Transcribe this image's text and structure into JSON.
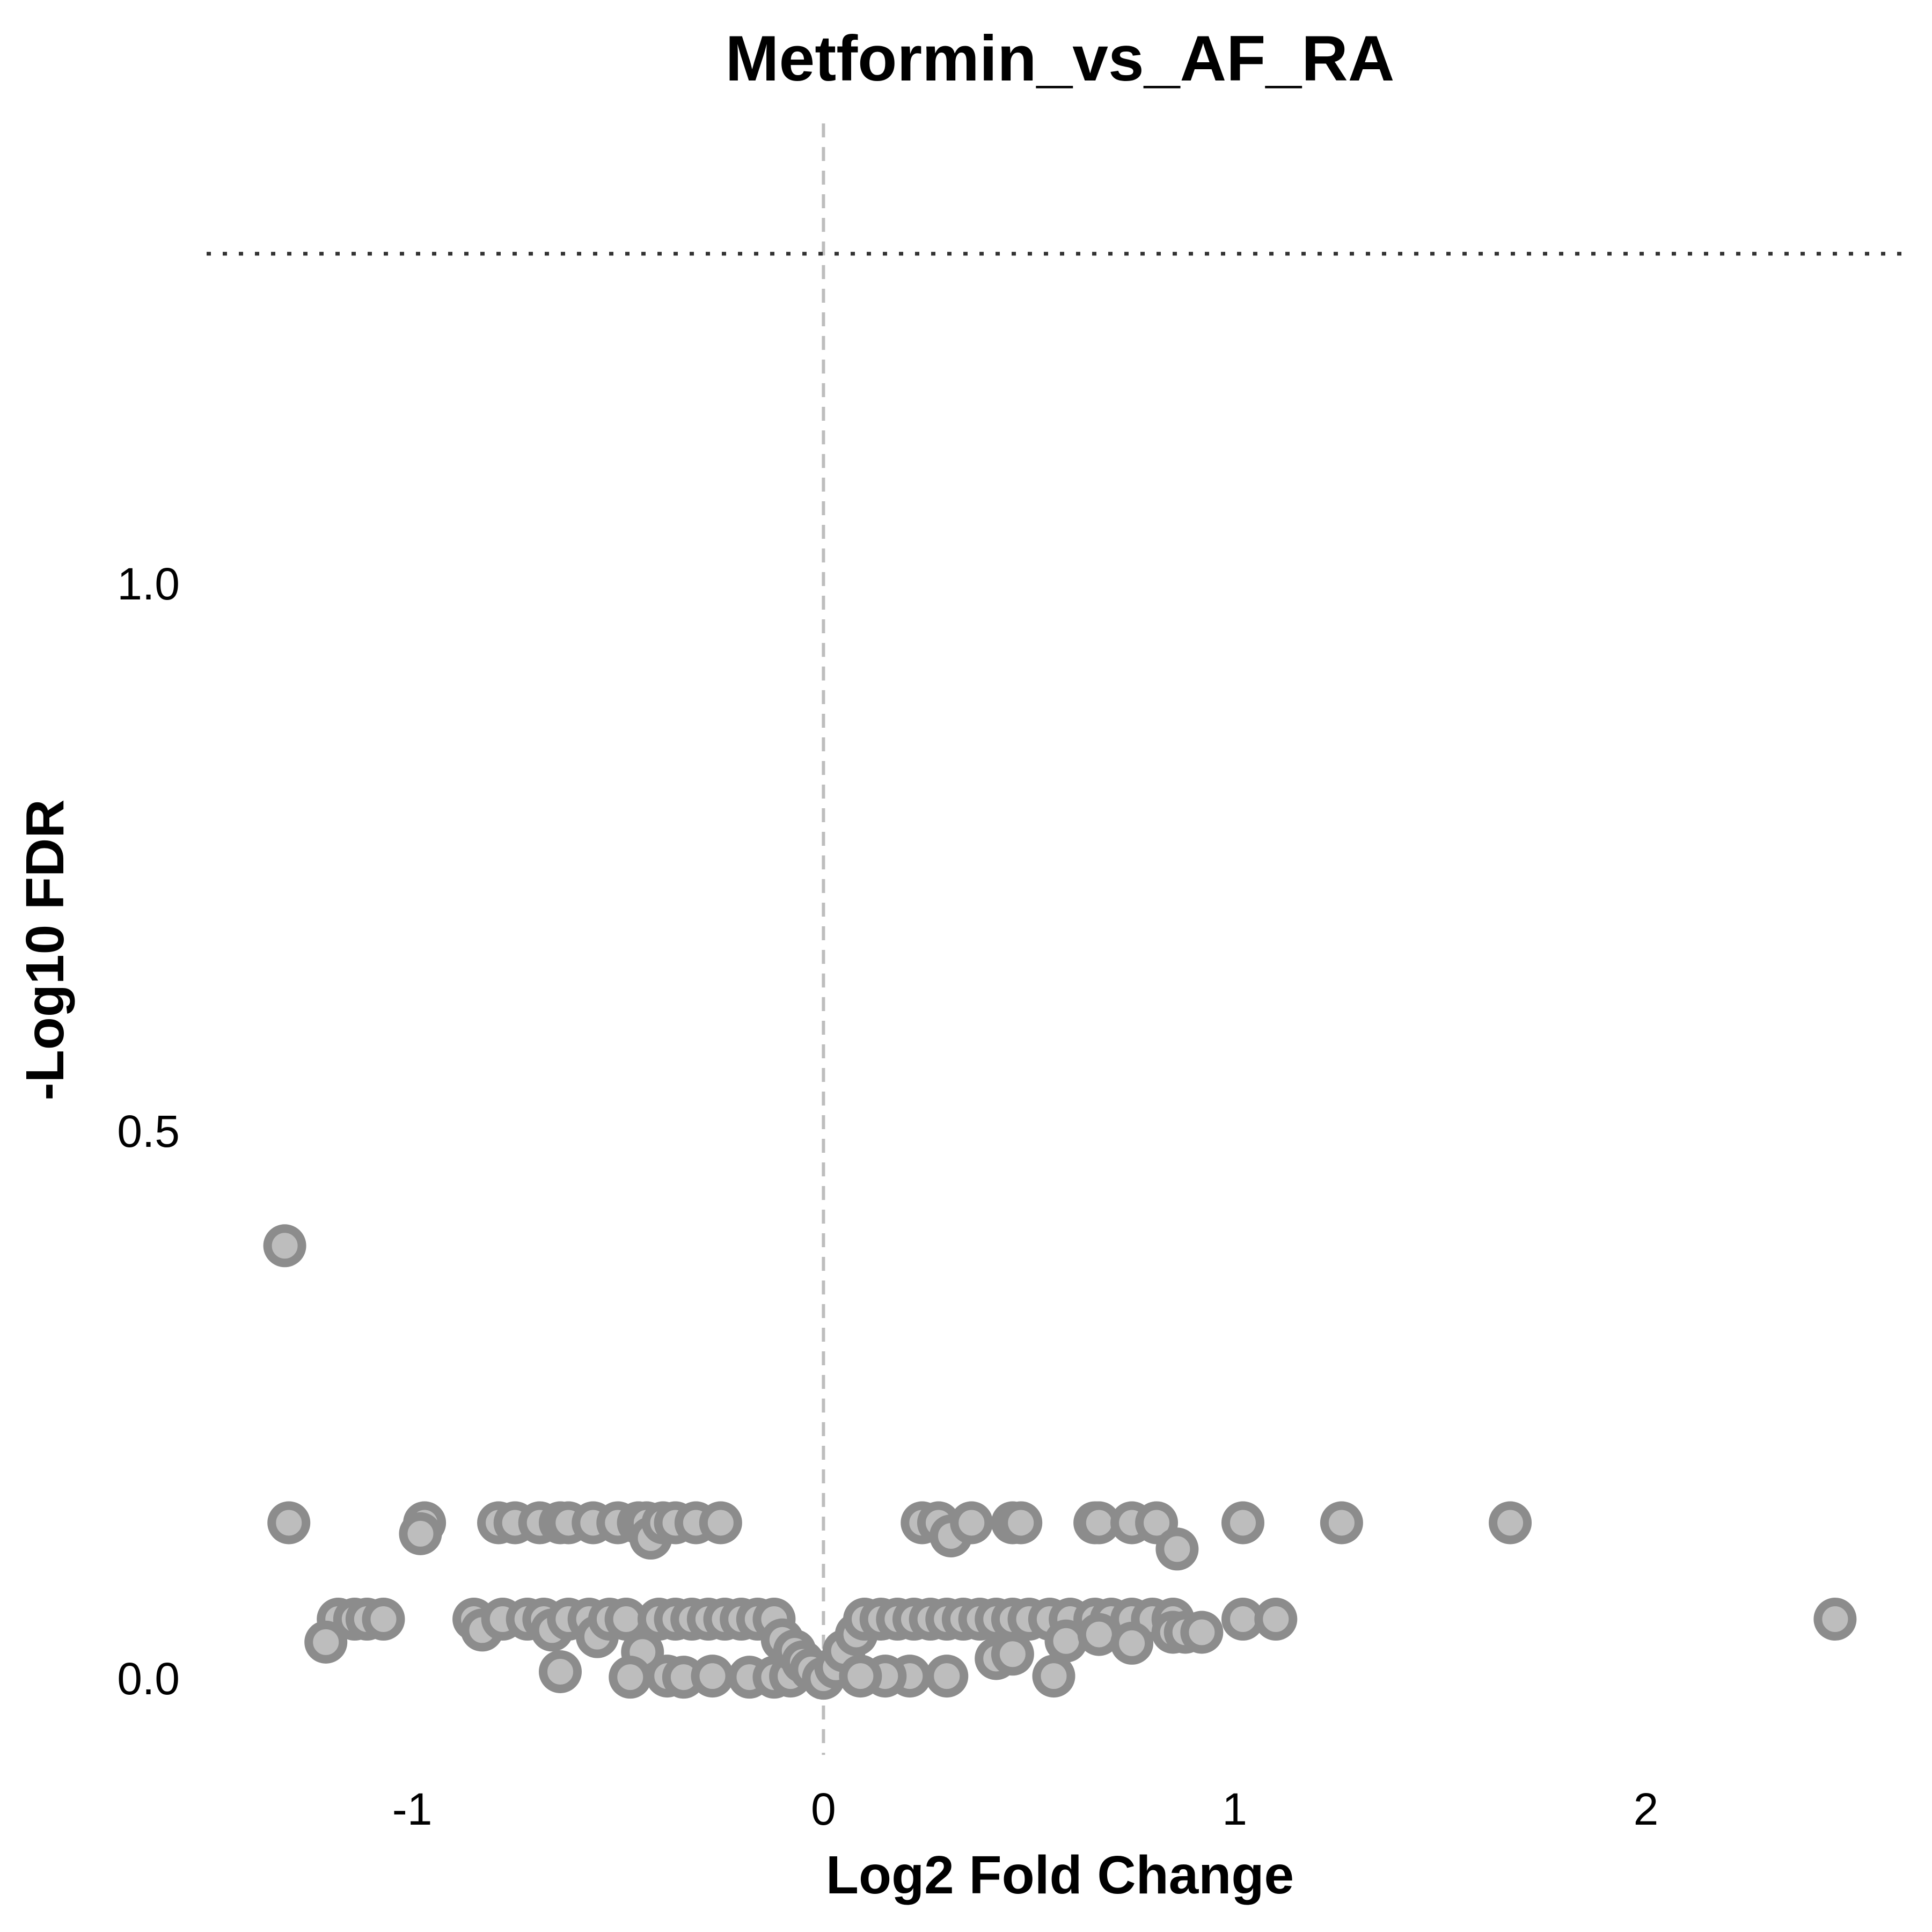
{
  "chart_data": {
    "type": "scatter",
    "title": "Metformin_vs_AF_RA",
    "xlabel": "Log2 Fold Change",
    "ylabel": "-Log10 FDR",
    "xlim": [
      -1.5,
      2.65
    ],
    "ylim": [
      -0.07,
      1.42
    ],
    "x_ticks": [
      -1,
      0,
      1,
      2
    ],
    "x_tick_labels": [
      "-1",
      "0",
      "1",
      "2"
    ],
    "y_ticks": [
      0.0,
      0.5,
      1.0
    ],
    "y_tick_labels": [
      "0.0",
      "0.5",
      "1.0"
    ],
    "grid": false,
    "reference_lines": {
      "fold_change_threshold_x": 0,
      "fdr_threshold_y": 1.30103
    },
    "colors": {
      "point_fill": "#bdbdbd",
      "point_stroke": "#8c8c8c",
      "fdr_line": "#333333",
      "zero_line": "#bdbdbd"
    },
    "series": [
      {
        "points": [
          [
            -1.31,
            0.395
          ],
          [
            -1.3,
            0.142
          ],
          [
            -0.97,
            0.142
          ],
          [
            -0.98,
            0.132
          ],
          [
            -0.79,
            0.142
          ],
          [
            -0.75,
            0.142
          ],
          [
            -0.69,
            0.142
          ],
          [
            -0.64,
            0.142
          ],
          [
            -0.62,
            0.142
          ],
          [
            -0.56,
            0.142
          ],
          [
            -0.5,
            0.142
          ],
          [
            -0.45,
            0.142
          ],
          [
            -0.43,
            0.142
          ],
          [
            -0.42,
            0.128
          ],
          [
            -0.39,
            0.142
          ],
          [
            -0.36,
            0.142
          ],
          [
            -0.31,
            0.142
          ],
          [
            -0.25,
            0.142
          ],
          [
            0.24,
            0.142
          ],
          [
            0.28,
            0.142
          ],
          [
            0.31,
            0.13
          ],
          [
            0.36,
            0.142
          ],
          [
            0.46,
            0.142
          ],
          [
            0.48,
            0.142
          ],
          [
            0.66,
            0.142
          ],
          [
            0.67,
            0.142
          ],
          [
            0.75,
            0.142
          ],
          [
            0.81,
            0.142
          ],
          [
            0.86,
            0.118
          ],
          [
            1.02,
            0.142
          ],
          [
            1.26,
            0.142
          ],
          [
            1.67,
            0.142
          ],
          [
            2.46,
            0.054
          ],
          [
            -1.18,
            0.054
          ],
          [
            -1.14,
            0.054
          ],
          [
            -1.11,
            0.054
          ],
          [
            -1.07,
            0.054
          ],
          [
            -1.21,
            0.033
          ],
          [
            -0.85,
            0.054
          ],
          [
            -0.83,
            0.044
          ],
          [
            -0.78,
            0.054
          ],
          [
            -0.72,
            0.054
          ],
          [
            -0.68,
            0.054
          ],
          [
            -0.66,
            0.044
          ],
          [
            -0.62,
            0.054
          ],
          [
            -0.57,
            0.054
          ],
          [
            -0.55,
            0.038
          ],
          [
            -0.52,
            0.054
          ],
          [
            -0.48,
            0.054
          ],
          [
            -0.44,
            0.024
          ],
          [
            -0.4,
            0.054
          ],
          [
            -0.36,
            0.054
          ],
          [
            -0.32,
            0.054
          ],
          [
            -0.28,
            0.054
          ],
          [
            -0.24,
            0.054
          ],
          [
            -0.2,
            0.054
          ],
          [
            -0.16,
            0.054
          ],
          [
            -0.12,
            0.054
          ],
          [
            -0.64,
            0.006
          ],
          [
            -0.47,
            0.001
          ],
          [
            -0.38,
            0.002
          ],
          [
            -0.34,
            0.001
          ],
          [
            -0.27,
            0.002
          ],
          [
            -0.18,
            0.001
          ],
          [
            -0.12,
            0.001
          ],
          [
            -0.08,
            0.002
          ],
          [
            -0.1,
            0.035
          ],
          [
            -0.07,
            0.025
          ],
          [
            -0.05,
            0.015
          ],
          [
            -0.03,
            0.008
          ],
          [
            0.0,
            0.0
          ],
          [
            0.03,
            0.01
          ],
          [
            0.05,
            0.025
          ],
          [
            0.08,
            0.04
          ],
          [
            0.1,
            0.054
          ],
          [
            0.14,
            0.054
          ],
          [
            0.18,
            0.054
          ],
          [
            0.22,
            0.054
          ],
          [
            0.26,
            0.054
          ],
          [
            0.3,
            0.054
          ],
          [
            0.34,
            0.054
          ],
          [
            0.38,
            0.054
          ],
          [
            0.42,
            0.054
          ],
          [
            0.46,
            0.054
          ],
          [
            0.5,
            0.054
          ],
          [
            0.55,
            0.054
          ],
          [
            0.6,
            0.054
          ],
          [
            0.66,
            0.054
          ],
          [
            0.7,
            0.054
          ],
          [
            0.75,
            0.054
          ],
          [
            0.8,
            0.054
          ],
          [
            0.85,
            0.054
          ],
          [
            1.02,
            0.054
          ],
          [
            1.1,
            0.054
          ],
          [
            0.59,
            0.034
          ],
          [
            0.67,
            0.04
          ],
          [
            0.75,
            0.032
          ],
          [
            0.85,
            0.042
          ],
          [
            0.88,
            0.042
          ],
          [
            0.92,
            0.042
          ],
          [
            0.42,
            0.018
          ],
          [
            0.46,
            0.022
          ],
          [
            0.56,
            0.002
          ],
          [
            0.3,
            0.002
          ],
          [
            0.21,
            0.002
          ],
          [
            0.15,
            0.002
          ],
          [
            0.09,
            0.002
          ]
        ]
      }
    ]
  }
}
